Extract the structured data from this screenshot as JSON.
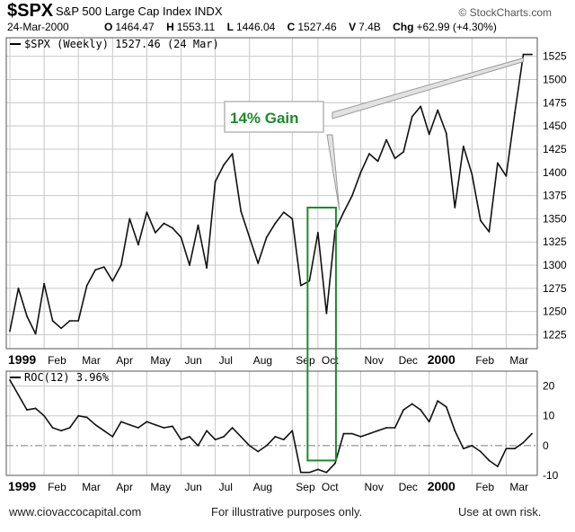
{
  "header": {
    "symbol": "$SPX",
    "name": "S&P 500 Large Cap Index INDX",
    "brand": "© StockCharts.com",
    "date": "24-Mar-2000",
    "open_label": "O",
    "open": "1464.47",
    "high_label": "H",
    "high": "1553.11",
    "low_label": "L",
    "low": "1446.04",
    "close_label": "C",
    "close": "1527.46",
    "volume_label": "V",
    "volume": "7.4B",
    "change_label": "Chg",
    "change": "+62.99 (+4.30%)"
  },
  "annotation": {
    "text": "14% Gain",
    "color": "#1e8a2e"
  },
  "footer": {
    "left": "www.ciovaccocapital.com",
    "center": "For illustrative purposes only.",
    "right": "Use at own risk."
  },
  "colors": {
    "line": "#111111",
    "grid": "#c8c8c8",
    "box": "#1e8a2e",
    "zero": "#7a7a7a"
  },
  "chart_data": [
    {
      "type": "line",
      "legend": "$SPX (Weekly) 1527.46 (24 Mar)",
      "ylim": [
        1210,
        1545
      ],
      "y_ticks": [
        1225,
        1250,
        1275,
        1300,
        1325,
        1350,
        1375,
        1400,
        1425,
        1450,
        1475,
        1500,
        1525
      ],
      "x_ticks": [
        {
          "label": "1999",
          "x": 0,
          "bold": true
        },
        {
          "label": "Feb",
          "x": 4
        },
        {
          "label": "Mar",
          "x": 8
        },
        {
          "label": "Apr",
          "x": 12
        },
        {
          "label": "May",
          "x": 16
        },
        {
          "label": "Jun",
          "x": 20
        },
        {
          "label": "Jul",
          "x": 24
        },
        {
          "label": "Aug",
          "x": 28
        },
        {
          "label": "Sep",
          "x": 33
        },
        {
          "label": "Oct",
          "x": 36
        },
        {
          "label": "Nov",
          "x": 41
        },
        {
          "label": "Dec",
          "x": 45
        },
        {
          "label": "2000",
          "x": 49,
          "bold": true
        },
        {
          "label": "Feb",
          "x": 54
        },
        {
          "label": "Mar",
          "x": 58
        }
      ],
      "x": [
        0,
        1,
        2,
        3,
        4,
        5,
        6,
        7,
        8,
        9,
        10,
        11,
        12,
        13,
        14,
        15,
        16,
        17,
        18,
        19,
        20,
        21,
        22,
        23,
        24,
        25,
        26,
        27,
        28,
        29,
        30,
        31,
        32,
        33,
        34,
        35,
        36,
        37,
        38,
        39,
        40,
        41,
        42,
        43,
        44,
        45,
        46,
        47,
        48,
        49,
        50,
        51,
        52,
        53,
        54,
        55,
        56,
        57,
        58,
        59,
        60,
        61
      ],
      "values": [
        1229,
        1275,
        1245,
        1226,
        1280,
        1240,
        1232,
        1240,
        1240,
        1278,
        1295,
        1298,
        1283,
        1300,
        1350,
        1322,
        1357,
        1335,
        1345,
        1340,
        1330,
        1300,
        1343,
        1297,
        1390,
        1408,
        1420,
        1358,
        1330,
        1302,
        1330,
        1345,
        1357,
        1350,
        1278,
        1283,
        1335,
        1248,
        1337,
        1357,
        1375,
        1400,
        1420,
        1412,
        1435,
        1415,
        1422,
        1460,
        1471,
        1441,
        1467,
        1442,
        1362,
        1428,
        1398,
        1348,
        1336,
        1410,
        1396,
        1464,
        1527,
        1527
      ],
      "highlight": {
        "x_start": 35,
        "x_end": 38,
        "y_low": 1247,
        "y_high": 1362
      },
      "arrow_from_x": 38.3,
      "arrow_to_x": 60,
      "arrow_to_y": 1527
    },
    {
      "type": "line",
      "legend": "ROC(12) 3.96%",
      "ylim": [
        -10,
        25
      ],
      "y_ticks": [
        -10,
        0,
        10,
        20
      ],
      "x_ticks": [
        {
          "label": "1999",
          "x": 0,
          "bold": true
        },
        {
          "label": "Feb",
          "x": 4
        },
        {
          "label": "Mar",
          "x": 8
        },
        {
          "label": "Apr",
          "x": 12
        },
        {
          "label": "May",
          "x": 16
        },
        {
          "label": "Jun",
          "x": 20
        },
        {
          "label": "Jul",
          "x": 24
        },
        {
          "label": "Aug",
          "x": 28
        },
        {
          "label": "Sep",
          "x": 33
        },
        {
          "label": "Oct",
          "x": 36
        },
        {
          "label": "Nov",
          "x": 41
        },
        {
          "label": "Dec",
          "x": 45
        },
        {
          "label": "2000",
          "x": 49,
          "bold": true
        },
        {
          "label": "Feb",
          "x": 54
        },
        {
          "label": "Mar",
          "x": 58
        }
      ],
      "x": [
        0,
        1,
        2,
        3,
        4,
        5,
        6,
        7,
        8,
        9,
        10,
        11,
        12,
        13,
        14,
        15,
        16,
        17,
        18,
        19,
        20,
        21,
        22,
        23,
        24,
        25,
        26,
        27,
        28,
        29,
        30,
        31,
        32,
        33,
        34,
        35,
        36,
        37,
        38,
        39,
        40,
        41,
        42,
        43,
        44,
        45,
        46,
        47,
        48,
        49,
        50,
        51,
        52,
        53,
        54,
        55,
        56,
        57,
        58,
        59,
        60,
        61
      ],
      "values": [
        22,
        17,
        12,
        12.5,
        10,
        6,
        5,
        6,
        10,
        9.5,
        7,
        5,
        3,
        8,
        7,
        6,
        8,
        7,
        6,
        6.5,
        2,
        3,
        0,
        5,
        2,
        3,
        6,
        3,
        0,
        -2,
        0,
        3,
        2,
        5,
        -9,
        -9,
        -8,
        -9,
        -6,
        4,
        4,
        3,
        4,
        5,
        6,
        6,
        12,
        14,
        12,
        8,
        15,
        13,
        5,
        -1,
        0,
        -2,
        -5,
        -7,
        -1,
        -1,
        1,
        4
      ],
      "highlight": {
        "x_start": 35,
        "x_end": 38
      }
    }
  ]
}
